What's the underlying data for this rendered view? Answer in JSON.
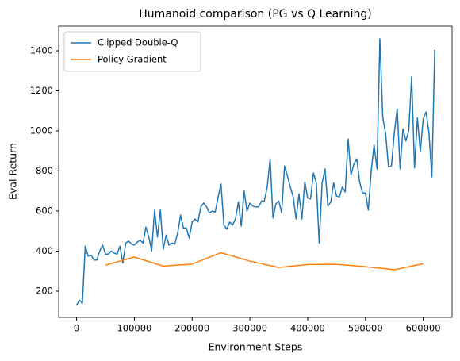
{
  "chart_data": {
    "type": "line",
    "title": "Humanoid comparison (PG vs Q Learning)",
    "x_label": "Environment Steps",
    "y_label": "Eval Return",
    "xlim": [
      -31000,
      650000
    ],
    "ylim": [
      69,
      1523
    ],
    "xticks": [
      0,
      100000,
      200000,
      300000,
      400000,
      500000,
      600000
    ],
    "yticks": [
      200,
      400,
      600,
      800,
      1000,
      1200,
      1400
    ],
    "grid": false,
    "legend": "upper left",
    "series": [
      {
        "name": "Clipped Double-Q",
        "color": "#1f77b4",
        "x": [
          0,
          5000,
          10000,
          15000,
          20000,
          25000,
          30000,
          35000,
          40000,
          45000,
          50000,
          55000,
          60000,
          65000,
          70000,
          75000,
          80000,
          85000,
          90000,
          95000,
          100000,
          105000,
          110000,
          115000,
          120000,
          125000,
          130000,
          135000,
          140000,
          145000,
          150000,
          155000,
          160000,
          165000,
          170000,
          175000,
          180000,
          185000,
          190000,
          195000,
          200000,
          205000,
          210000,
          215000,
          220000,
          225000,
          230000,
          235000,
          240000,
          245000,
          250000,
          255000,
          260000,
          265000,
          270000,
          275000,
          280000,
          285000,
          290000,
          295000,
          300000,
          305000,
          310000,
          315000,
          320000,
          325000,
          330000,
          335000,
          340000,
          345000,
          350000,
          355000,
          360000,
          365000,
          370000,
          375000,
          380000,
          385000,
          390000,
          395000,
          400000,
          405000,
          410000,
          415000,
          420000,
          425000,
          430000,
          435000,
          440000,
          445000,
          450000,
          455000,
          460000,
          465000,
          470000,
          475000,
          480000,
          485000,
          490000,
          495000,
          500000,
          505000,
          510000,
          515000,
          520000,
          525000,
          530000,
          535000,
          540000,
          545000,
          550000,
          555000,
          560000,
          565000,
          570000,
          575000,
          580000,
          585000,
          590000,
          595000,
          600000,
          605000,
          610000,
          615000,
          620000
        ],
        "values": [
          130,
          155,
          140,
          425,
          375,
          380,
          355,
          355,
          400,
          430,
          385,
          385,
          400,
          390,
          385,
          425,
          340,
          440,
          450,
          435,
          430,
          445,
          455,
          440,
          520,
          470,
          400,
          605,
          470,
          605,
          410,
          480,
          430,
          440,
          435,
          490,
          580,
          515,
          515,
          465,
          545,
          560,
          545,
          620,
          640,
          620,
          590,
          600,
          595,
          670,
          735,
          530,
          510,
          545,
          530,
          560,
          645,
          525,
          700,
          600,
          640,
          625,
          620,
          620,
          650,
          650,
          720,
          860,
          565,
          635,
          650,
          590,
          825,
          775,
          720,
          670,
          560,
          685,
          560,
          745,
          665,
          660,
          790,
          740,
          440,
          740,
          810,
          625,
          645,
          740,
          675,
          670,
          720,
          695,
          960,
          780,
          835,
          860,
          745,
          690,
          690,
          605,
          800,
          930,
          810,
          1460,
          1070,
          985,
          820,
          825,
          990,
          1110,
          810,
          1010,
          950,
          1000,
          1270,
          815,
          1065,
          895,
          1060,
          1095,
          990,
          770,
          1405
        ]
      },
      {
        "name": "Policy Gradient",
        "color": "#ff7f0e",
        "x": [
          50000,
          100000,
          150000,
          200000,
          250000,
          300000,
          350000,
          400000,
          450000,
          500000,
          550000,
          600000
        ],
        "values": [
          330,
          370,
          325,
          335,
          392,
          350,
          318,
          333,
          334,
          322,
          307,
          337
        ]
      }
    ]
  }
}
